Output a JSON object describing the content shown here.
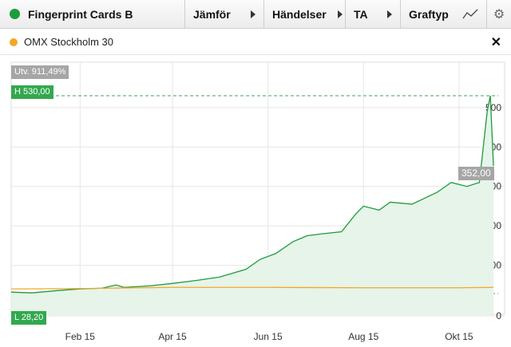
{
  "toolbar": {
    "title": "Fingerprint Cards B",
    "title_color": "#1e9b3c",
    "buttons": [
      {
        "label": "Jämför"
      },
      {
        "label": "Händelser"
      },
      {
        "label": "TA"
      },
      {
        "label": "Graftyp"
      }
    ],
    "chart_type_icon": "line-chart-icon",
    "settings_icon": "gear-icon"
  },
  "compare": {
    "label": "OMX Stockholm 30",
    "color": "#f5a623",
    "close_icon": "close-icon"
  },
  "badges": {
    "change": "Utv. 911,49%",
    "high": "H 530,00",
    "low": "L 28,20",
    "last": "352,00"
  },
  "chart_data": {
    "type": "area",
    "x_tick_labels": [
      "Feb 15",
      "Apr 15",
      "Jun 15",
      "Aug 15",
      "Okt 15"
    ],
    "y_tick_labels": [
      "0",
      "100",
      "200",
      "300",
      "400",
      "500"
    ],
    "ylim": [
      0,
      530
    ],
    "grid": true,
    "high": 530,
    "low": 28.2,
    "last": 352,
    "series": [
      {
        "name": "Fingerprint Cards B",
        "color": "#1e9b3c",
        "x": [
          "2015-01-02",
          "2015-01-15",
          "2015-02-01",
          "2015-02-15",
          "2015-03-01",
          "2015-03-10",
          "2015-03-15",
          "2015-04-01",
          "2015-04-15",
          "2015-05-01",
          "2015-05-15",
          "2015-06-01",
          "2015-06-10",
          "2015-06-20",
          "2015-07-01",
          "2015-07-10",
          "2015-07-20",
          "2015-08-01",
          "2015-08-10",
          "2015-08-15",
          "2015-08-25",
          "2015-09-01",
          "2015-09-15",
          "2015-10-01",
          "2015-10-10",
          "2015-10-20",
          "2015-10-28",
          "2015-11-02",
          "2015-11-04",
          "2015-11-06"
        ],
        "values": [
          32,
          30,
          36,
          40,
          42,
          50,
          44,
          48,
          54,
          62,
          70,
          90,
          115,
          130,
          160,
          175,
          180,
          185,
          230,
          250,
          240,
          260,
          255,
          285,
          310,
          300,
          310,
          490,
          530,
          352
        ]
      },
      {
        "name": "OMX Stockholm 30",
        "color": "#f5a623",
        "x": [
          "2015-01-02",
          "2015-02-15",
          "2015-04-15",
          "2015-06-15",
          "2015-08-15",
          "2015-10-15",
          "2015-11-06"
        ],
        "values": [
          40,
          41,
          44,
          44,
          43,
          43,
          44
        ]
      }
    ]
  }
}
